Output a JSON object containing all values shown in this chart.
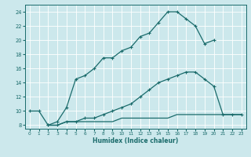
{
  "xlabel": "Humidex (Indice chaleur)",
  "ylabel": "",
  "bg_color": "#cce8ec",
  "line_color": "#1a6b6b",
  "xlim": [
    -0.5,
    23.5
  ],
  "ylim": [
    7.5,
    25.0
  ],
  "xticks": [
    0,
    1,
    2,
    3,
    4,
    5,
    6,
    7,
    8,
    9,
    10,
    11,
    12,
    13,
    14,
    15,
    16,
    17,
    18,
    19,
    20,
    21,
    22,
    23
  ],
  "yticks": [
    8,
    10,
    12,
    14,
    16,
    18,
    20,
    22,
    24
  ],
  "curve1_x": [
    0,
    1,
    2,
    3,
    4,
    5,
    6,
    7,
    8,
    9,
    10,
    11,
    12,
    13,
    14,
    15,
    16,
    17,
    18,
    19,
    20
  ],
  "curve1_y": [
    10,
    10,
    8,
    8.5,
    10.5,
    14.5,
    15.0,
    16.0,
    17.5,
    17.5,
    18.5,
    19.0,
    20.5,
    21.0,
    22.5,
    24.0,
    24.0,
    23.0,
    22.0,
    19.5,
    20.0
  ],
  "curve2_x": [
    2,
    3,
    4,
    5,
    6,
    7,
    8,
    9,
    10,
    11,
    12,
    13,
    14,
    15,
    16,
    17,
    18,
    19,
    20,
    21,
    22,
    23
  ],
  "curve2_y": [
    8.0,
    8.0,
    8.5,
    8.5,
    8.5,
    8.5,
    8.5,
    8.5,
    9.0,
    9.0,
    9.0,
    9.0,
    9.0,
    9.0,
    9.5,
    9.5,
    9.5,
    9.5,
    9.5,
    9.5,
    9.5,
    9.5
  ],
  "curve3_x": [
    2,
    3,
    4,
    5,
    6,
    7,
    8,
    9,
    10,
    11,
    12,
    13,
    14,
    15,
    16,
    17,
    18,
    19,
    20,
    21,
    22,
    23
  ],
  "curve3_y": [
    8.0,
    8.0,
    8.5,
    8.5,
    9.0,
    9.0,
    9.5,
    10.0,
    10.5,
    11.0,
    12.0,
    13.0,
    14.0,
    14.5,
    15.0,
    15.5,
    15.5,
    14.5,
    13.5,
    9.5,
    9.5,
    9.5
  ]
}
